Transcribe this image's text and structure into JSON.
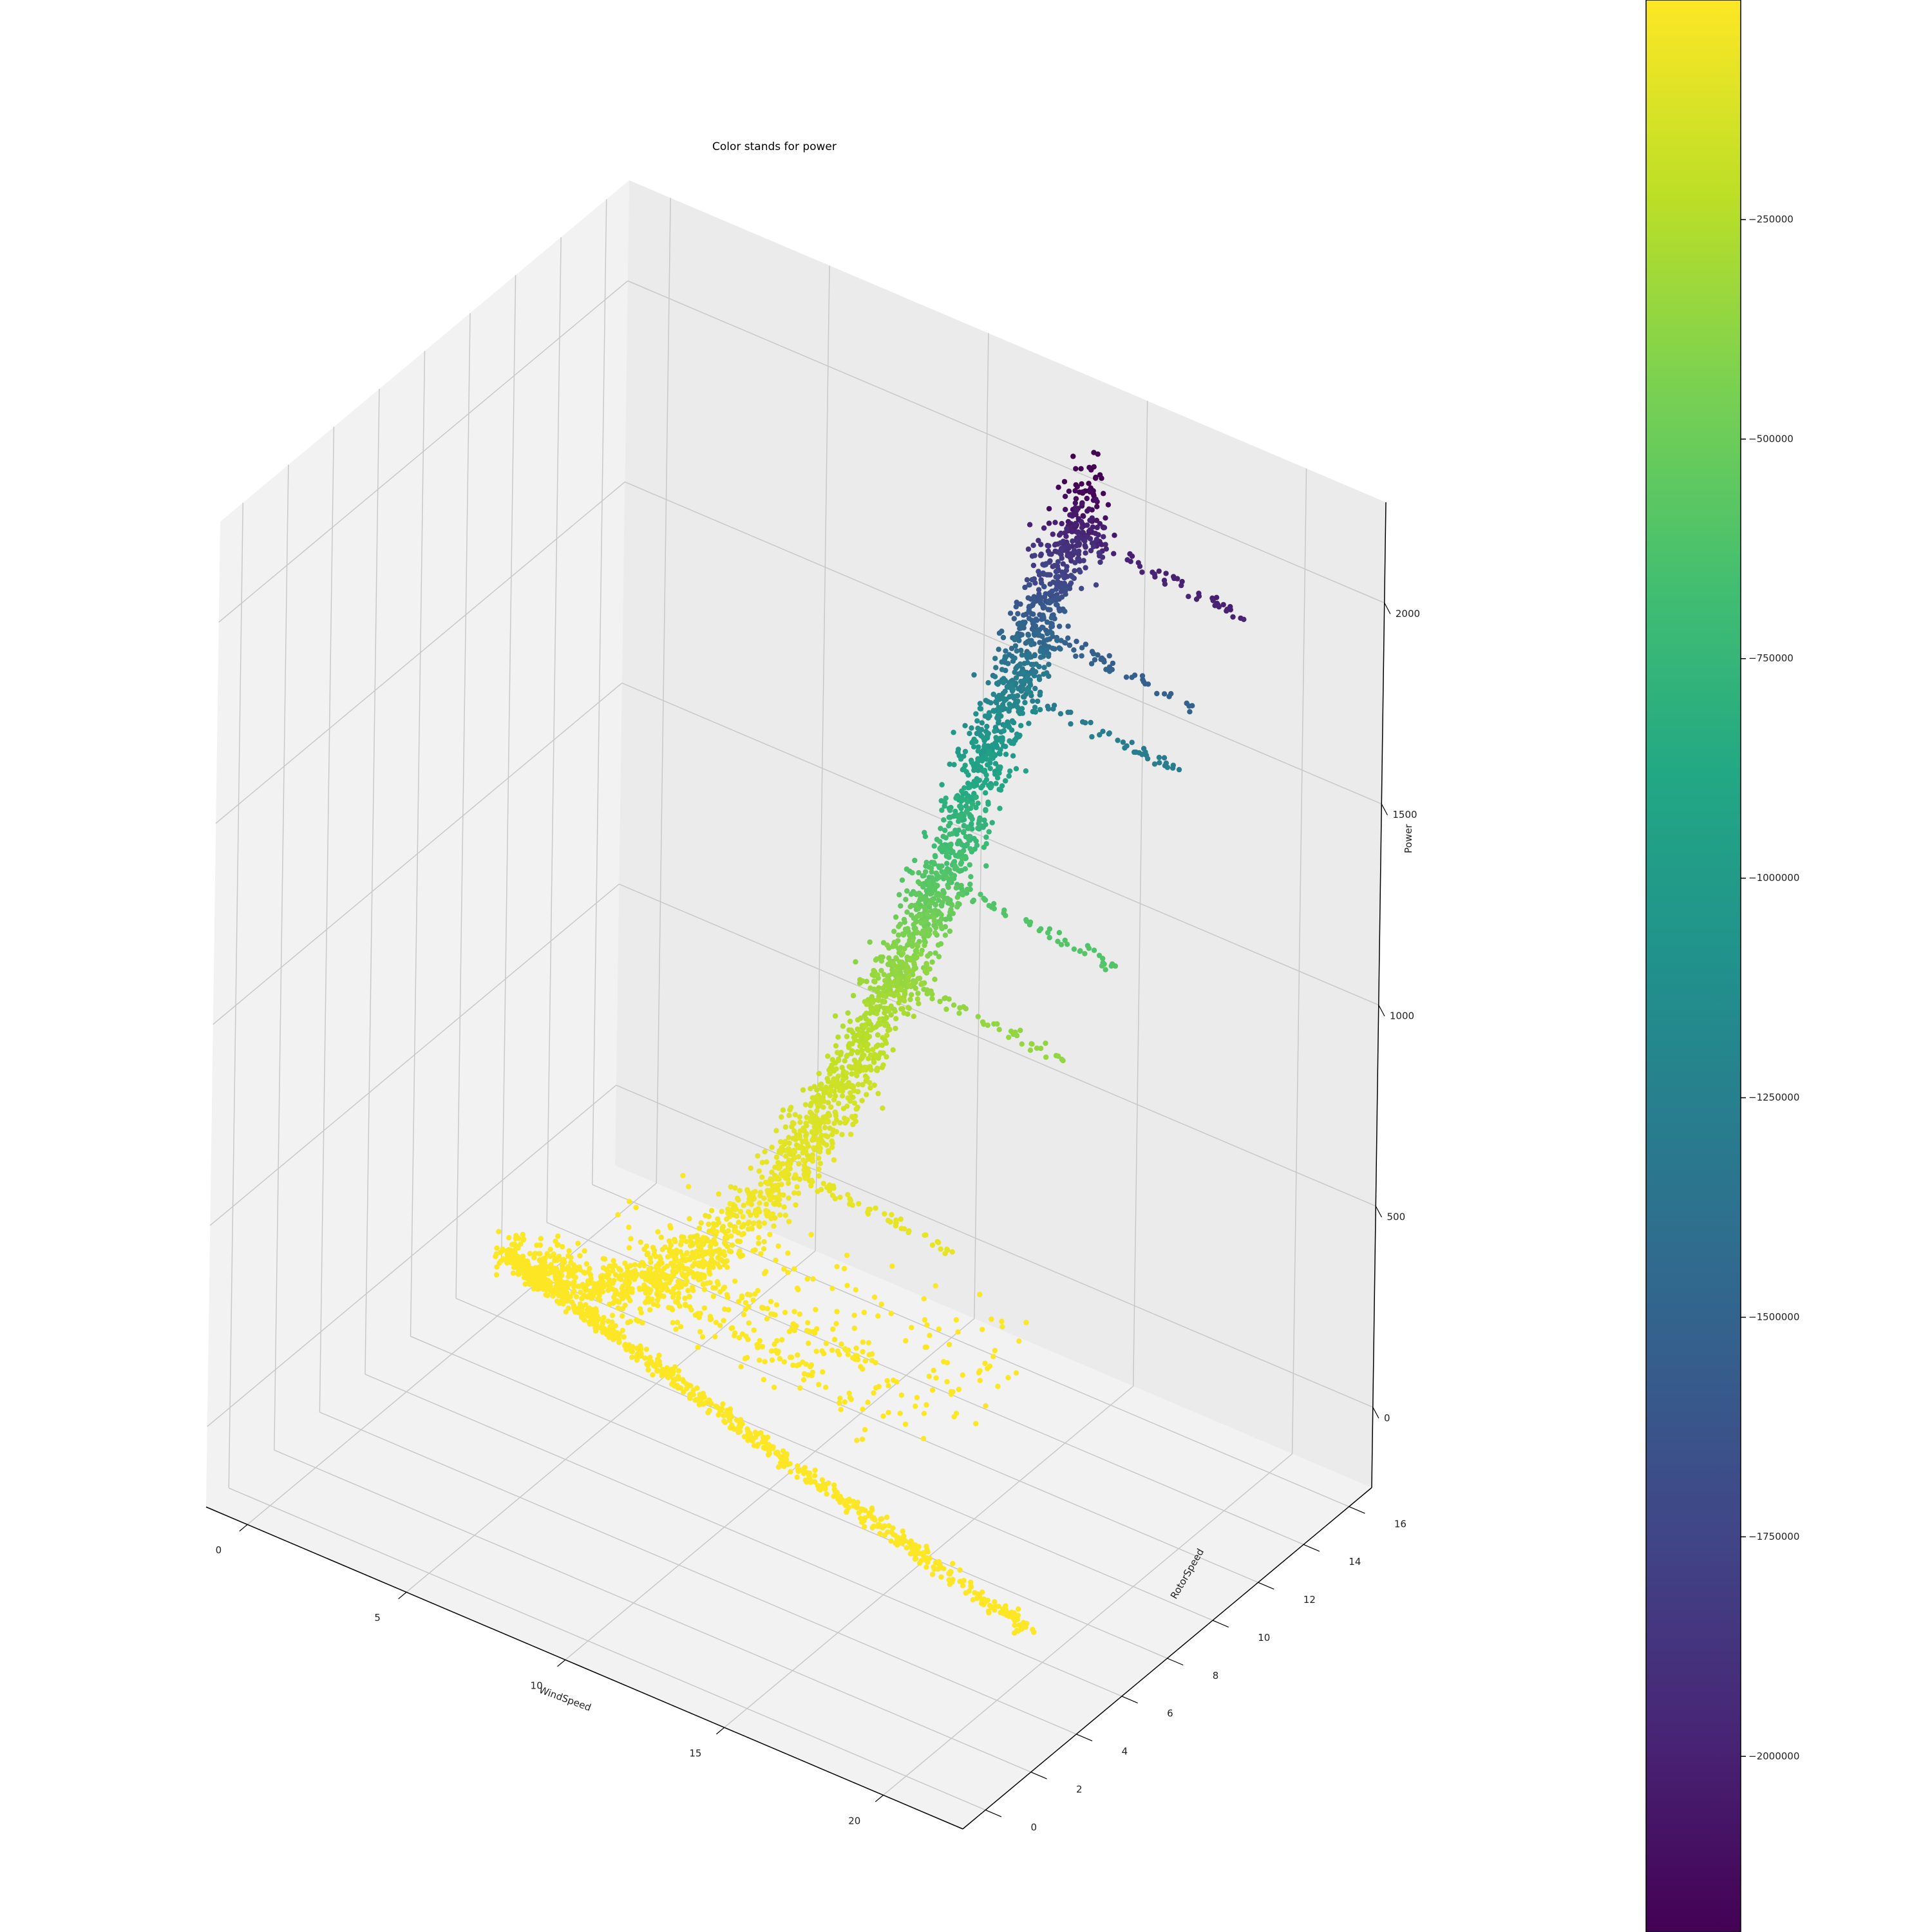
{
  "chart_data": {
    "type": "scatter",
    "projection": "3d",
    "title": "Color stands for power",
    "xlabel": "WindSpeed",
    "ylabel": "RotorSpeed",
    "zlabel": "Power",
    "x_ticks": [
      0,
      5,
      10,
      15,
      20
    ],
    "y_ticks": [
      0,
      2,
      4,
      6,
      8,
      10,
      12,
      14,
      16
    ],
    "z_ticks": [
      0,
      500,
      1000,
      1500,
      2000
    ],
    "x_tick_labels": [
      "0",
      "5",
      "10",
      "15",
      "20"
    ],
    "y_tick_labels": [
      "0",
      "2",
      "4",
      "6",
      "8",
      "10",
      "12",
      "14",
      "16"
    ],
    "z_tick_labels": [
      "0",
      "500",
      "1000",
      "1500",
      "2000"
    ],
    "xlim": [
      -1.3,
      22.5
    ],
    "ylim": [
      -1,
      17
    ],
    "zlim": [
      -200,
      2250
    ],
    "grid": true,
    "colormap": "viridis",
    "colorbar": {
      "range": [
        -2200000,
        0
      ],
      "ticks": [
        -250000,
        -500000,
        -750000,
        -1000000,
        -1250000,
        -1500000,
        -1750000,
        -2000000
      ],
      "tick_labels": [
        "−250000",
        "−500000",
        "−750000",
        "−1000000",
        "−1250000",
        "−1500000",
        "−1750000",
        "−2000000"
      ]
    },
    "series": [
      {
        "description_role": "main power curve",
        "points": [
          [
            1.0,
            9.0,
            30
          ],
          [
            2.5,
            9.0,
            40
          ],
          [
            4.0,
            9.0,
            60
          ],
          [
            5.0,
            9.0,
            90
          ],
          [
            6.0,
            9.5,
            150
          ],
          [
            7.0,
            10.0,
            230
          ],
          [
            8.0,
            11.0,
            350
          ],
          [
            8.5,
            11.5,
            450
          ],
          [
            9.0,
            12.0,
            550
          ],
          [
            9.5,
            12.5,
            660
          ],
          [
            10.0,
            13.0,
            800
          ],
          [
            10.5,
            13.3,
            920
          ],
          [
            11.0,
            13.5,
            1050
          ],
          [
            11.5,
            13.8,
            1200
          ],
          [
            12.0,
            14.0,
            1350
          ],
          [
            12.5,
            14.2,
            1500
          ],
          [
            13.0,
            14.5,
            1650
          ],
          [
            13.5,
            14.7,
            1800
          ],
          [
            14.0,
            14.9,
            1950
          ],
          [
            14.8,
            15.2,
            2080
          ]
        ]
      },
      {
        "description_role": "low-power branch at high wind speed",
        "points": [
          [
            1.0,
            9.0,
            30
          ],
          [
            3.0,
            8.5,
            20
          ],
          [
            5.0,
            8.0,
            15
          ],
          [
            7.0,
            7.5,
            10
          ],
          [
            9.0,
            7.0,
            8
          ],
          [
            11.0,
            6.5,
            6
          ],
          [
            13.0,
            6.0,
            5
          ],
          [
            15.0,
            5.5,
            4
          ],
          [
            17.0,
            5.0,
            3
          ],
          [
            19.0,
            4.5,
            2
          ],
          [
            21.0,
            4.0,
            1
          ]
        ]
      }
    ],
    "horizontal_streaks_power": [
      2000,
      1750,
      1600,
      1100,
      850,
      400,
      150,
      100
    ]
  }
}
